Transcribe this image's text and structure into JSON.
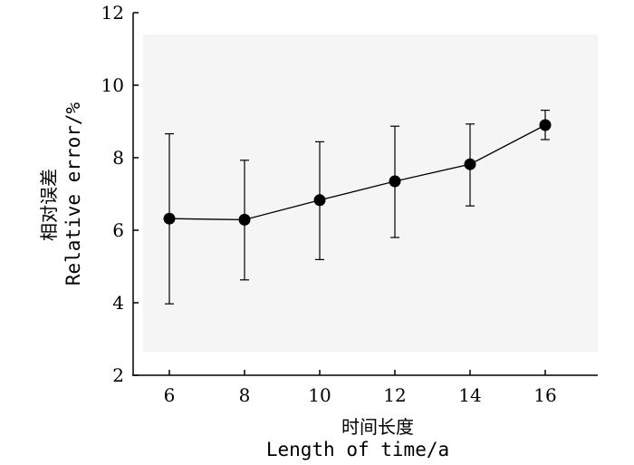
{
  "chart_data": {
    "type": "scatter",
    "x": [
      6,
      8,
      10,
      12,
      14,
      16
    ],
    "values": [
      6.32,
      6.29,
      6.83,
      7.35,
      7.82,
      8.9
    ],
    "error_upper": [
      8.66,
      7.93,
      8.44,
      8.87,
      8.93,
      9.31
    ],
    "error_lower": [
      3.97,
      4.63,
      5.19,
      5.8,
      6.67,
      8.5
    ],
    "connect_points": true,
    "xlabel_cn": "时间长度",
    "xlabel_en": "Length of time/a",
    "ylabel_cn": "相对误差",
    "ylabel_en": "Relative error/%",
    "xticks": [
      "6",
      "8",
      "10",
      "12",
      "14",
      "16"
    ],
    "yticks": [
      "2",
      "4",
      "6",
      "8",
      "10",
      "12"
    ],
    "xlim": [
      5,
      17
    ],
    "ylim": [
      2,
      12
    ],
    "grid": false,
    "colors": {
      "series": "#000000",
      "background": "#ffffff"
    }
  }
}
